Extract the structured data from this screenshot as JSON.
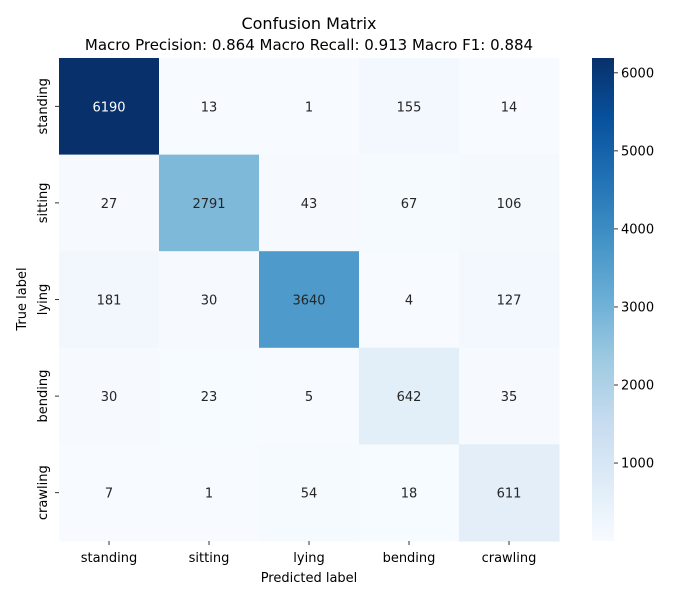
{
  "chart_data": {
    "type": "heatmap",
    "title": "Confusion Matrix",
    "subtitle": "Macro Precision: 0.864  Macro Recall: 0.913  Macro F1: 0.884",
    "xlabel": "Predicted label",
    "ylabel": "True label",
    "x_categories": [
      "standing",
      "sitting",
      "lying",
      "bending",
      "crawling"
    ],
    "y_categories": [
      "standing",
      "sitting",
      "lying",
      "bending",
      "crawling"
    ],
    "values": [
      [
        6190,
        13,
        1,
        155,
        14
      ],
      [
        27,
        2791,
        43,
        67,
        106
      ],
      [
        181,
        30,
        3640,
        4,
        127
      ],
      [
        30,
        23,
        5,
        642,
        35
      ],
      [
        7,
        1,
        54,
        18,
        611
      ]
    ],
    "colorbar": {
      "cmap": "Blues",
      "range": [
        1,
        6190
      ],
      "ticks": [
        "1000",
        "2000",
        "3000",
        "4000",
        "5000",
        "6000"
      ],
      "tick_values": [
        1000,
        2000,
        3000,
        4000,
        5000,
        6000
      ]
    }
  }
}
